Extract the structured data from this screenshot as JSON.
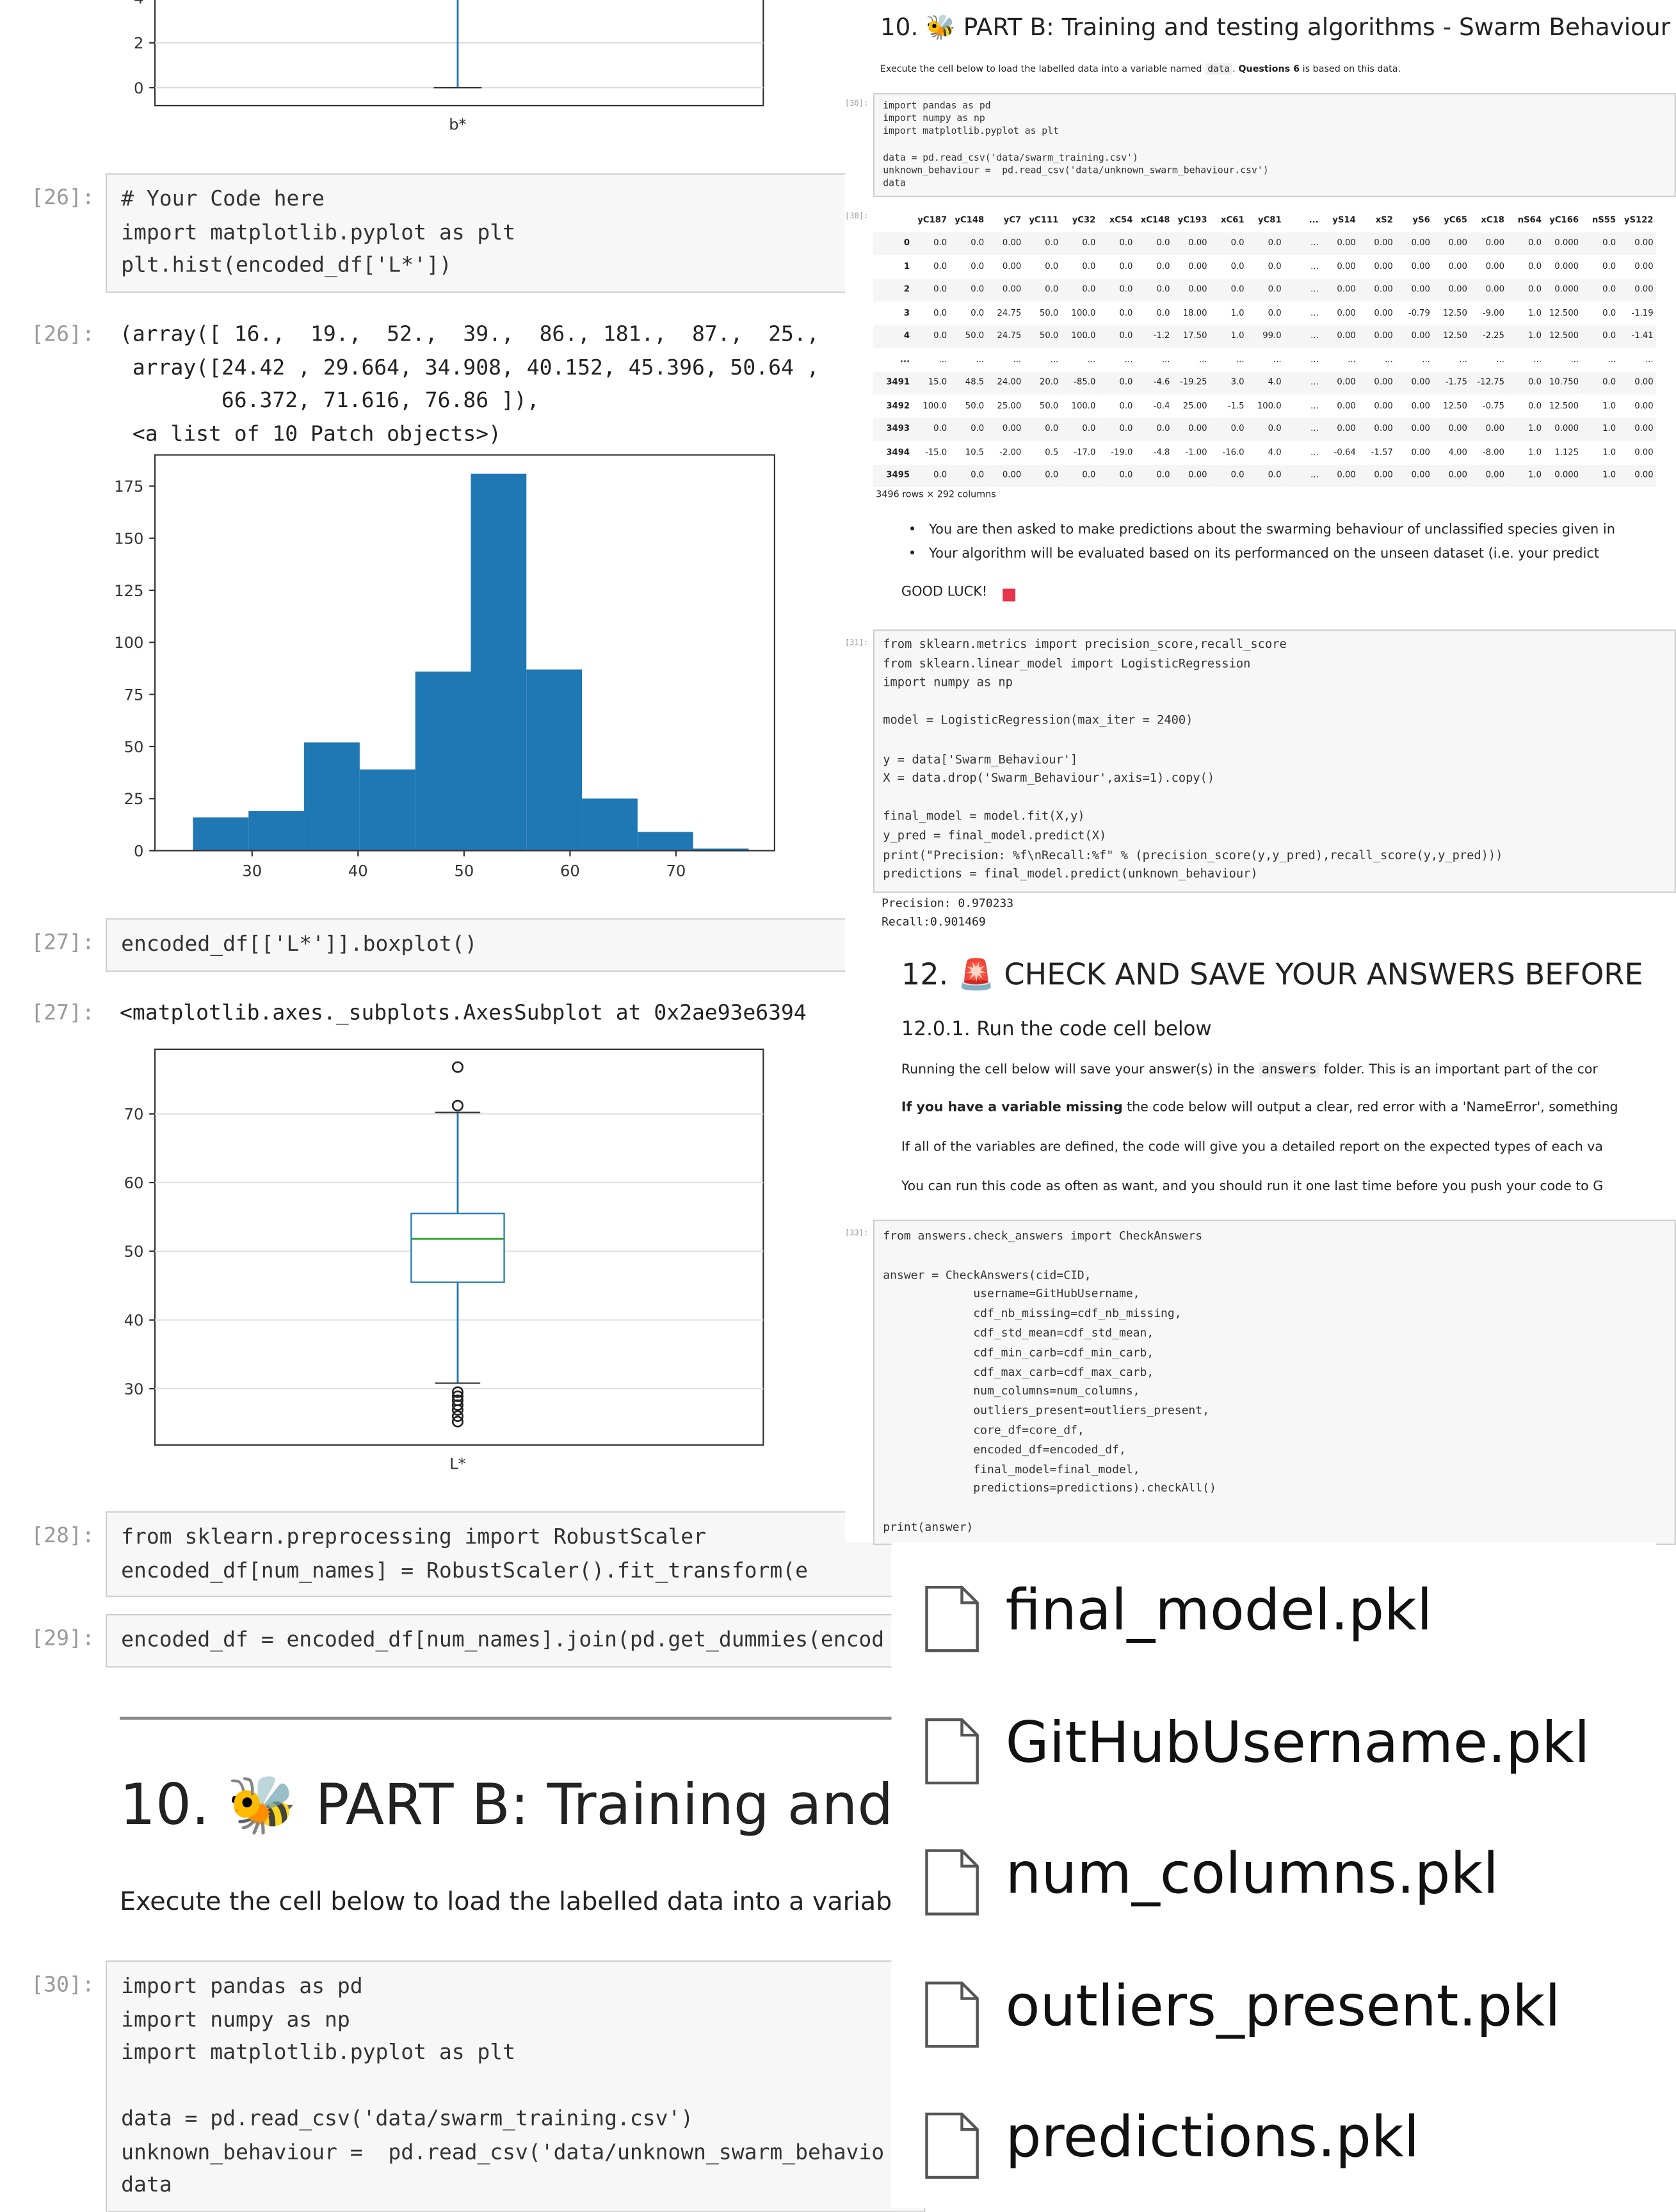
{
  "left": {
    "boxplot_b": {
      "yticks": [
        0,
        2,
        4
      ],
      "ylim": [
        -0.8,
        4.1
      ],
      "whisker_low": 0,
      "xlabel": "b*",
      "color": "#1f77b4"
    },
    "cell26_in": {
      "prompt": "[26]:",
      "blocks": [
        [
          "# Your Code here",
          "import matplotlib.pyplot as plt",
          "plt.hist(encoded_df['L*'])"
        ]
      ]
    },
    "cell26_out": {
      "prompt": "[26]:",
      "blocks": [
        [
          "(array([ 16.,  19.,  52.,  39.,  86., 181.,  87.,  25.,",
          " array([24.42 , 29.664, 34.908, 40.152, 45.396, 50.64 ,",
          "        66.372, 71.616, 76.86 ]),",
          " <a list of 10 Patch objects>)"
        ]
      ]
    },
    "histogram": {
      "type": "histogram",
      "bins": [
        24.42,
        29.664,
        34.908,
        40.152,
        45.396,
        50.64,
        55.884,
        61.128,
        66.372,
        71.616,
        76.86
      ],
      "counts": [
        16,
        19,
        52,
        39,
        86,
        181,
        87,
        25,
        9,
        1
      ],
      "color": "#1f77b4",
      "xlim": [
        20.83,
        79.3
      ],
      "ylim": [
        0,
        190
      ],
      "xticks": [
        30,
        40,
        50,
        60,
        70
      ],
      "yticks": [
        0,
        25,
        50,
        75,
        100,
        125,
        150,
        175
      ]
    },
    "cell27_in": {
      "prompt": "[27]:",
      "blocks": [
        [
          "encoded_df[['L*']].boxplot()"
        ]
      ]
    },
    "cell27_out": {
      "prompt": "[27]:",
      "blocks": [
        [
          "<matplotlib.axes._subplots.AxesSubplot at 0x2ae93e6394"
        ]
      ]
    },
    "boxplot_l": {
      "type": "boxplot",
      "whisker_low": 30.8,
      "q1": 45.5,
      "median": 51.8,
      "q3": 55.5,
      "whisker_high": 70.2,
      "outliers": [
        71.2,
        76.8,
        29.5,
        28.9,
        28.3,
        27.6,
        26.9,
        26.0,
        25.2
      ],
      "ylim": [
        21.8,
        79.4
      ],
      "yticks": [
        30,
        40,
        50,
        60,
        70
      ],
      "xlabel": "L*",
      "color": "#1f77b4",
      "median_color": "#2ca02c"
    },
    "cell28_in": {
      "prompt": "[28]:",
      "blocks": [
        [
          "from sklearn.preprocessing import RobustScaler",
          "encoded_df[num_names] = RobustScaler().fit_transform(e"
        ]
      ]
    },
    "cell29_in": {
      "prompt": "[29]:",
      "blocks": [
        [
          "encoded_df = encoded_df[num_names].join(pd.get_dummies(encod"
        ]
      ]
    },
    "heading": "10. 🐝 PART B: Training and tes",
    "intro": "Execute the cell below to load the labelled data into a variable n",
    "cell30_in": {
      "prompt": "[30]:",
      "blocks": [
        [
          "import pandas as pd",
          "import numpy as np",
          "import matplotlib.pyplot as plt"
        ],
        [
          "data = pd.read_csv('data/swarm_training.csv')",
          "unknown_behaviour =  pd.read_csv('data/unknown_swarm_behavio",
          "data"
        ]
      ]
    }
  },
  "right": {
    "heading": "10. 🐝 PART B: Training and testing algorithms - Swarm Behaviour",
    "intro": [
      "Execute the cell below to load the labelled data into a variable named ",
      "data",
      ". ",
      "Questions 6",
      " is based on this data."
    ],
    "cell30_in": {
      "prompt": "[30]:",
      "blocks": [
        [
          "import pandas as pd",
          "import numpy as np",
          "import matplotlib.pyplot as plt"
        ],
        [
          "data = pd.read_csv('data/swarm_training.csv')",
          "unknown_behaviour =  pd.read_csv('data/unknown_swarm_behaviour.csv')",
          "data"
        ]
      ]
    },
    "cell30_out_prompt": "[30]:",
    "dataframe": {
      "columns": [
        "yC187",
        "yC148",
        "yC7",
        "yC111",
        "yC32",
        "xC54",
        "xC148",
        "yC193",
        "xC61",
        "yC81",
        "...",
        "yS14",
        "xS2",
        "yS6",
        "yC65",
        "xC18",
        "nS64",
        "yC166",
        "nS55",
        "yS122"
      ],
      "rows": [
        {
          "index": "0",
          "cells": [
            "0.0",
            "0.0",
            "0.00",
            "0.0",
            "0.0",
            "0.0",
            "0.0",
            "0.00",
            "0.0",
            "0.0",
            "...",
            "0.00",
            "0.00",
            "0.00",
            "0.00",
            "0.00",
            "0.0",
            "0.000",
            "0.0",
            "0.00"
          ]
        },
        {
          "index": "1",
          "cells": [
            "0.0",
            "0.0",
            "0.00",
            "0.0",
            "0.0",
            "0.0",
            "0.0",
            "0.00",
            "0.0",
            "0.0",
            "...",
            "0.00",
            "0.00",
            "0.00",
            "0.00",
            "0.00",
            "0.0",
            "0.000",
            "0.0",
            "0.00"
          ]
        },
        {
          "index": "2",
          "cells": [
            "0.0",
            "0.0",
            "0.00",
            "0.0",
            "0.0",
            "0.0",
            "0.0",
            "0.00",
            "0.0",
            "0.0",
            "...",
            "0.00",
            "0.00",
            "0.00",
            "0.00",
            "0.00",
            "0.0",
            "0.000",
            "0.0",
            "0.00"
          ]
        },
        {
          "index": "3",
          "cells": [
            "0.0",
            "0.0",
            "24.75",
            "50.0",
            "100.0",
            "0.0",
            "0.0",
            "18.00",
            "1.0",
            "0.0",
            "...",
            "0.00",
            "0.00",
            "-0.79",
            "12.50",
            "-9.00",
            "1.0",
            "12.500",
            "0.0",
            "-1.19"
          ]
        },
        {
          "index": "4",
          "cells": [
            "0.0",
            "50.0",
            "24.75",
            "50.0",
            "100.0",
            "0.0",
            "-1.2",
            "17.50",
            "1.0",
            "99.0",
            "...",
            "0.00",
            "0.00",
            "0.00",
            "12.50",
            "-2.25",
            "1.0",
            "12.500",
            "0.0",
            "-1.41"
          ]
        },
        {
          "index": "...",
          "cells": [
            "...",
            "...",
            "...",
            "...",
            "...",
            "...",
            "...",
            "...",
            "...",
            "...",
            "...",
            "...",
            "...",
            "...",
            "...",
            "...",
            "...",
            "...",
            "...",
            "..."
          ]
        },
        {
          "index": "3491",
          "cells": [
            "15.0",
            "48.5",
            "24.00",
            "20.0",
            "-85.0",
            "0.0",
            "-4.6",
            "-19.25",
            "3.0",
            "4.0",
            "...",
            "0.00",
            "0.00",
            "0.00",
            "-1.75",
            "-12.75",
            "0.0",
            "10.750",
            "0.0",
            "0.00"
          ]
        },
        {
          "index": "3492",
          "cells": [
            "100.0",
            "50.0",
            "25.00",
            "50.0",
            "100.0",
            "0.0",
            "-0.4",
            "25.00",
            "-1.5",
            "100.0",
            "...",
            "0.00",
            "0.00",
            "0.00",
            "12.50",
            "-0.75",
            "0.0",
            "12.500",
            "1.0",
            "0.00"
          ]
        },
        {
          "index": "3493",
          "cells": [
            "0.0",
            "0.0",
            "0.00",
            "0.0",
            "0.0",
            "0.0",
            "0.0",
            "0.00",
            "0.0",
            "0.0",
            "...",
            "0.00",
            "0.00",
            "0.00",
            "0.00",
            "0.00",
            "1.0",
            "0.000",
            "1.0",
            "0.00"
          ]
        },
        {
          "index": "3494",
          "cells": [
            "-15.0",
            "10.5",
            "-2.00",
            "0.5",
            "-17.0",
            "-19.0",
            "-4.8",
            "-1.00",
            "-16.0",
            "4.0",
            "...",
            "-0.64",
            "-1.57",
            "0.00",
            "4.00",
            "-8.00",
            "1.0",
            "1.125",
            "1.0",
            "0.00"
          ]
        },
        {
          "index": "3495",
          "cells": [
            "0.0",
            "0.0",
            "0.00",
            "0.0",
            "0.0",
            "0.0",
            "0.0",
            "0.00",
            "0.0",
            "0.0",
            "...",
            "0.00",
            "0.00",
            "0.00",
            "0.00",
            "0.00",
            "1.0",
            "0.000",
            "1.0",
            "0.00"
          ]
        }
      ]
    },
    "shape": "3496 rows × 292 columns",
    "bullets": [
      "You are then asked to make predictions about the swarming behaviour of unclassified species given in",
      "Your algorithm will be evaluated based on its performanced on the unseen dataset (i.e. your predict"
    ],
    "good_luck": "GOOD LUCK!",
    "cell31_in": {
      "prompt": "[31]:",
      "blocks": [
        [
          "from sklearn.metrics import precision_score,recall_score",
          "from sklearn.linear_model import LogisticRegression",
          "import numpy as np"
        ],
        [
          "model = LogisticRegression(max_iter = 2400)"
        ],
        [
          "y = data['Swarm_Behaviour']",
          "X = data.drop('Swarm_Behaviour',axis=1).copy()"
        ],
        [
          "final_model = model.fit(X,y)",
          "y_pred = final_model.predict(X)",
          "print(\"Precision: %f\\nRecall:%f\" % (precision_score(y,y_pred),recall_score(y,y_pred)))",
          "predictions = final_model.predict(unknown_behaviour)"
        ]
      ]
    },
    "cell31_out": {
      "blocks": [
        [
          "Precision: 0.970233",
          "Recall:0.901469"
        ]
      ]
    },
    "heading12": "12. 🚨 CHECK AND SAVE YOUR ANSWERS BEFORE",
    "subheading": "12.0.1. Run the code cell below",
    "para1": [
      "Running the cell below will save your answer(s) in the ",
      "answers",
      " folder. This is an important part of the cor"
    ],
    "para2": [
      "If you have a variable missing",
      " the code below will output a clear, red error with a 'NameError', something"
    ],
    "para3": "If all of the variables are defined, the code will give you a detailed report on the expected types of each va",
    "para4": "You can run this code as often as want, and you should run it one last time before you push your code to G",
    "cell33_in": {
      "prompt": "[33]:",
      "blocks": [
        [
          "from answers.check_answers import CheckAnswers"
        ],
        [
          "answer = CheckAnswers(cid=CID,",
          "             username=GitHubUsername,",
          "             cdf_nb_missing=cdf_nb_missing,",
          "             cdf_std_mean=cdf_std_mean,",
          "             cdf_min_carb=cdf_min_carb,",
          "             cdf_max_carb=cdf_max_carb,",
          "             num_columns=num_columns,",
          "             outliers_present=outliers_present,",
          "             core_df=core_df,",
          "             encoded_df=encoded_df,",
          "             final_model=final_model,",
          "             predictions=predictions).checkAll()"
        ],
        [
          "print(answer)"
        ]
      ]
    }
  },
  "files": [
    "final_model.pkl",
    "GitHubUsername.pkl",
    "num_columns.pkl",
    "outliers_present.pkl",
    "predictions.pkl"
  ]
}
